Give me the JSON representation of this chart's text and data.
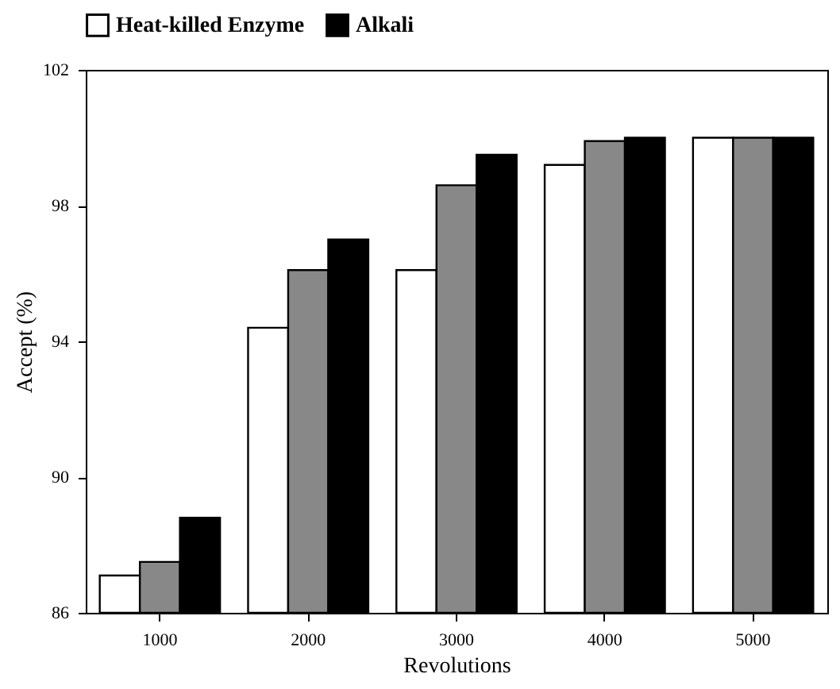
{
  "chart_data": {
    "type": "bar",
    "xlabel": "Revolutions",
    "ylabel": "Accept (%)",
    "categories": [
      "1000",
      "2000",
      "3000",
      "4000",
      "5000"
    ],
    "series": [
      {
        "name": "Heat-killed Enzyme",
        "color": "#ffffff",
        "values": [
          87.1,
          94.4,
          96.1,
          99.2,
          100.0
        ]
      },
      {
        "color": "#888888",
        "values": [
          87.5,
          96.1,
          98.6,
          99.9,
          100.0
        ]
      },
      {
        "name": "Alkali",
        "color": "#000000",
        "values": [
          88.8,
          97.0,
          99.5,
          100.0,
          100.0
        ]
      }
    ],
    "ylim": [
      86,
      102
    ],
    "yticks": [
      86,
      90,
      94,
      98,
      102
    ],
    "grid": false,
    "legend": "top"
  }
}
